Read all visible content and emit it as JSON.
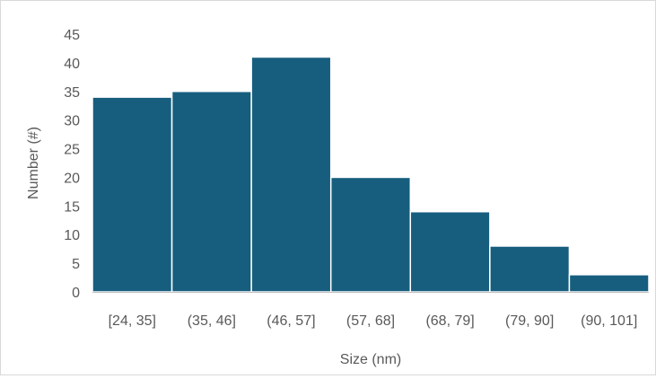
{
  "chart_data": {
    "type": "bar",
    "categories": [
      "[24, 35]",
      "(35, 46]",
      "(46, 57]",
      "(57, 68]",
      "(68, 79]",
      "(79, 90]",
      "(90, 101]"
    ],
    "values": [
      34,
      35,
      41,
      20,
      14,
      8,
      3
    ],
    "xlabel": "Size (nm)",
    "ylabel": "Number (#)",
    "ylim": [
      0,
      45
    ],
    "yticks": [
      0,
      5,
      10,
      15,
      20,
      25,
      30,
      35,
      40,
      45
    ],
    "grid": false,
    "legend": "none",
    "colors": {
      "bar": "#175e7e",
      "bar_border": "#ffffff",
      "axis": "#bfbfbf",
      "text": "#595959"
    }
  }
}
